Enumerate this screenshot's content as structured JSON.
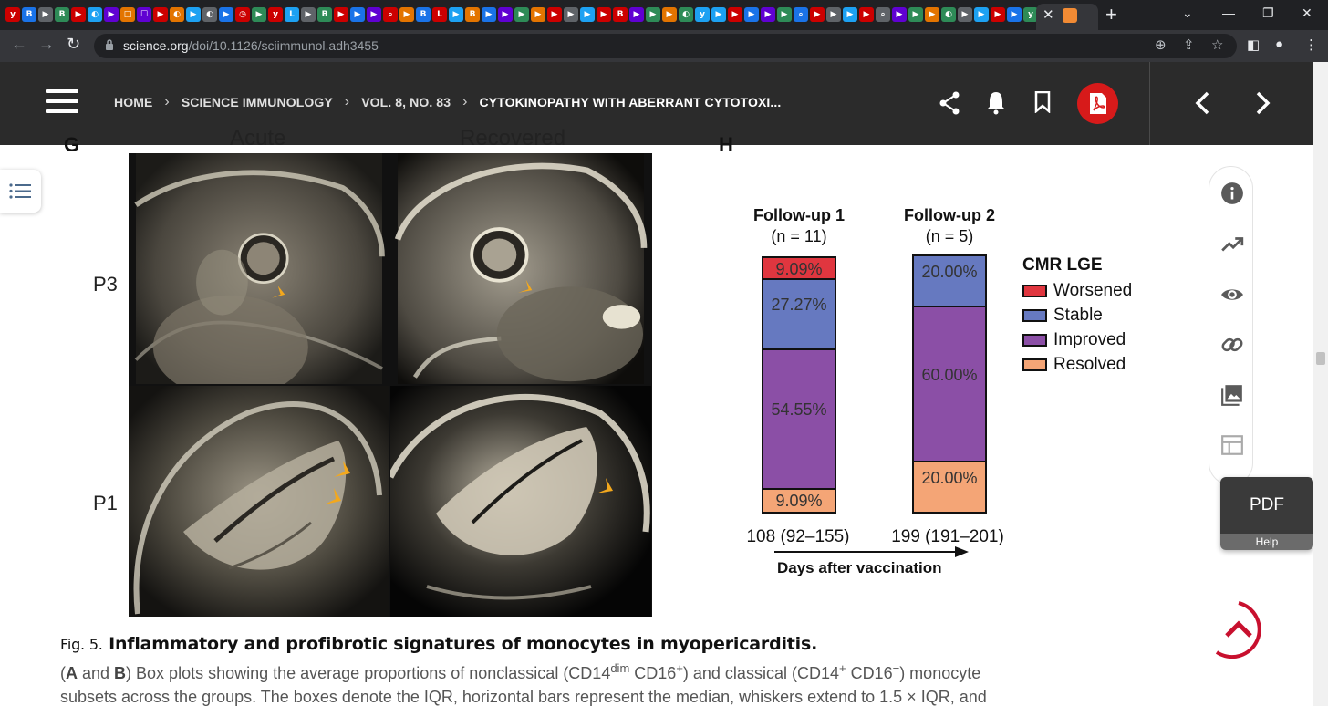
{
  "browser": {
    "url_domain": "science.org",
    "url_path": "/doi/10.1126/sciimmunol.adh3455",
    "tab_favicons": [
      "y",
      "B",
      "▶",
      "B",
      "▶",
      "◐",
      "▶",
      "□",
      "☐",
      "▶",
      "◐",
      "▶",
      "◐",
      "▶",
      "◷",
      "▶",
      "y",
      "L",
      "▶",
      "B",
      "▶",
      "▶",
      "▶",
      "⌕",
      "▶",
      "B",
      "L",
      "▶",
      "B",
      "▶",
      "▶",
      "▶",
      "▶",
      "▶",
      "▶",
      "▶",
      "▶",
      "B",
      "▶",
      "▶",
      "▶",
      "◐",
      "y",
      "▶",
      "▶",
      "▶",
      "▶",
      "▶",
      "⌕",
      "▶",
      "▶",
      "▶",
      "▶",
      "⌕",
      "▶",
      "▶",
      "▶",
      "◐",
      "▶",
      "▶",
      "▶",
      "▶",
      "y",
      "g",
      "▶",
      "▶",
      "▶"
    ],
    "accent_colors": {
      "tabstrip": "#202124",
      "toolbar": "#35363a"
    }
  },
  "header": {
    "breadcrumbs": [
      {
        "label": "HOME"
      },
      {
        "label": "SCIENCE IMMUNOLOGY"
      },
      {
        "label": "VOL. 8, NO. 83"
      },
      {
        "label": "CYTOKINOPATHY WITH ABERRANT CYTOTOXI..."
      }
    ],
    "icons": [
      "share-icon",
      "bell-icon",
      "bookmark-icon",
      "pdf-icon"
    ],
    "pdf_color": "#d71a1a"
  },
  "figure": {
    "panel_g": {
      "row_labels": [
        "P3",
        "P1"
      ],
      "column_labels": [
        "Acute",
        "Recovered"
      ]
    },
    "panel_h": {
      "legend_title": "CMR LGE",
      "x_axis_label": "Days after vaccination"
    }
  },
  "chart_data": {
    "type": "bar",
    "stacked": true,
    "categories": [
      "Follow-up 1",
      "Follow-up 2"
    ],
    "category_n": [
      "(n = 11)",
      "(n = 5)"
    ],
    "category_days": [
      "108 (92–155)",
      "199 (191–201)"
    ],
    "series": [
      {
        "name": "Worsened",
        "color": "#e0363f",
        "values": [
          9.09,
          0
        ],
        "labels": [
          "9.09%",
          ""
        ]
      },
      {
        "name": "Stable",
        "color": "#6679c0",
        "values": [
          27.27,
          20.0
        ],
        "labels": [
          "27.27%",
          "20.00%"
        ]
      },
      {
        "name": "Improved",
        "color": "#8b4fa6",
        "values": [
          54.55,
          60.0
        ],
        "labels": [
          "54.55%",
          "60.00%"
        ]
      },
      {
        "name": "Resolved",
        "color": "#f4a576",
        "values": [
          9.09,
          20.0
        ],
        "labels": [
          "9.09%",
          "20.00%"
        ]
      }
    ],
    "ylim": [
      0,
      100
    ],
    "legend": "right",
    "xlabel": "Days after vaccination"
  },
  "tools": {
    "rail_icons": [
      "info-icon",
      "trending-icon",
      "eye-icon",
      "link-icon",
      "images-icon",
      "table-icon"
    ],
    "pdf_label": "PDF",
    "help_label": "Help"
  },
  "caption": {
    "fig_number": "Fig. 5.",
    "title": "Inflammatory and profibrotic signatures of monocytes in myopericarditis.",
    "line1_pre": "(",
    "A": "A",
    "and": " and ",
    "B": "B",
    "line1_post": ") Box plots showing the average proportions of nonclassical (CD14",
    "sup_dim": "dim",
    "cd16plus": " CD16",
    "sup_plus": "+",
    "mid": ") and classical (CD14",
    "sup_plus2": "+",
    "cd16minus": " CD16",
    "sup_minus": "−",
    "end": ") monocyte",
    "line2": "subsets across the groups. The boxes denote the IQR, horizontal bars represent the median, whiskers extend to 1.5 × IQR, and"
  }
}
